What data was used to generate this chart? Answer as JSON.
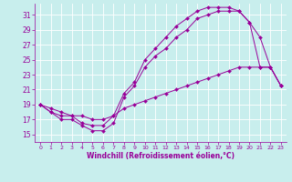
{
  "xlabel": "Windchill (Refroidissement éolien,°C)",
  "bg_color": "#c8eeed",
  "grid_color": "#ffffff",
  "line_color": "#990099",
  "xlim": [
    -0.5,
    23.5
  ],
  "ylim": [
    14,
    32.5
  ],
  "yticks": [
    15,
    17,
    19,
    21,
    23,
    25,
    27,
    29,
    31
  ],
  "xticks": [
    0,
    1,
    2,
    3,
    4,
    5,
    6,
    7,
    8,
    9,
    10,
    11,
    12,
    13,
    14,
    15,
    16,
    17,
    18,
    19,
    20,
    21,
    22,
    23
  ],
  "line1_x": [
    0,
    1,
    2,
    3,
    4,
    5,
    6,
    7,
    8,
    9,
    10,
    11,
    12,
    13,
    14,
    15,
    16,
    17,
    18,
    19,
    20,
    21,
    22,
    23
  ],
  "line1_y": [
    19,
    18,
    17,
    17,
    16.2,
    15.5,
    15.5,
    16.5,
    20,
    21.5,
    24,
    25.5,
    26.5,
    28,
    29,
    30.5,
    31,
    31.5,
    31.5,
    31.5,
    30,
    28,
    24,
    21.5
  ],
  "line2_x": [
    0,
    1,
    2,
    3,
    4,
    5,
    6,
    7,
    8,
    9,
    10,
    11,
    12,
    13,
    14,
    15,
    16,
    17,
    18,
    19,
    20,
    21,
    22,
    23
  ],
  "line2_y": [
    19,
    18,
    17.5,
    17.5,
    16.5,
    16.2,
    16.2,
    17.5,
    20.5,
    22,
    25,
    26.5,
    28,
    29.5,
    30.5,
    31.5,
    32,
    32,
    32,
    31.5,
    30,
    24,
    24,
    21.5
  ],
  "line3_x": [
    0,
    1,
    2,
    3,
    4,
    5,
    6,
    7,
    8,
    9,
    10,
    11,
    12,
    13,
    14,
    15,
    16,
    17,
    18,
    19,
    20,
    21,
    22,
    23
  ],
  "line3_y": [
    19,
    18.5,
    18,
    17.5,
    17.5,
    17,
    17,
    17.5,
    18.5,
    19,
    19.5,
    20,
    20.5,
    21,
    21.5,
    22,
    22.5,
    23,
    23.5,
    24,
    24,
    24,
    24,
    21.5
  ]
}
